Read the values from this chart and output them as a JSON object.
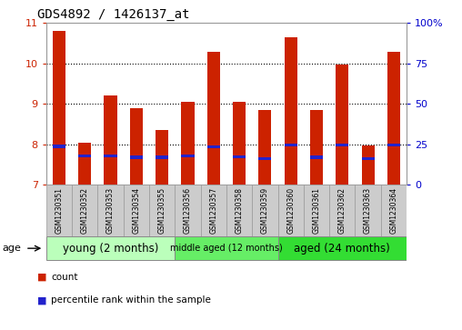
{
  "title": "GDS4892 / 1426137_at",
  "samples": [
    "GSM1230351",
    "GSM1230352",
    "GSM1230353",
    "GSM1230354",
    "GSM1230355",
    "GSM1230356",
    "GSM1230357",
    "GSM1230358",
    "GSM1230359",
    "GSM1230360",
    "GSM1230361",
    "GSM1230362",
    "GSM1230363",
    "GSM1230364"
  ],
  "count_values": [
    10.8,
    8.05,
    9.2,
    8.9,
    8.35,
    9.05,
    10.3,
    9.05,
    8.85,
    10.65,
    8.85,
    9.98,
    7.98,
    10.3
  ],
  "percentile_values": [
    7.95,
    7.72,
    7.72,
    7.68,
    7.68,
    7.72,
    7.93,
    7.7,
    7.65,
    7.98,
    7.68,
    7.98,
    7.65,
    7.98
  ],
  "ylim_left": [
    7,
    11
  ],
  "ylim_right": [
    0,
    100
  ],
  "yticks_left": [
    7,
    8,
    9,
    10,
    11
  ],
  "yticks_right": [
    0,
    25,
    50,
    75,
    100
  ],
  "ytick_labels_right": [
    "0",
    "25",
    "50",
    "75",
    "100%"
  ],
  "bar_color": "#cc2200",
  "percentile_color": "#2222cc",
  "bar_width": 0.5,
  "groups": [
    {
      "label": "young (2 months)",
      "start": 0,
      "end": 5
    },
    {
      "label": "middle aged (12 months)",
      "start": 5,
      "end": 9
    },
    {
      "label": "aged (24 months)",
      "start": 9,
      "end": 14
    }
  ],
  "group_colors": [
    "#bbffbb",
    "#66ee66",
    "#33dd33"
  ],
  "group_label": "age",
  "left_axis_color": "#cc2200",
  "right_axis_color": "#0000cc",
  "sample_box_color": "#cccccc",
  "sample_box_edge": "#999999",
  "plot_border_color": "#999999",
  "grid_color": "#000000",
  "legend_bar_color": "#cc2200",
  "legend_pct_color": "#2222cc"
}
